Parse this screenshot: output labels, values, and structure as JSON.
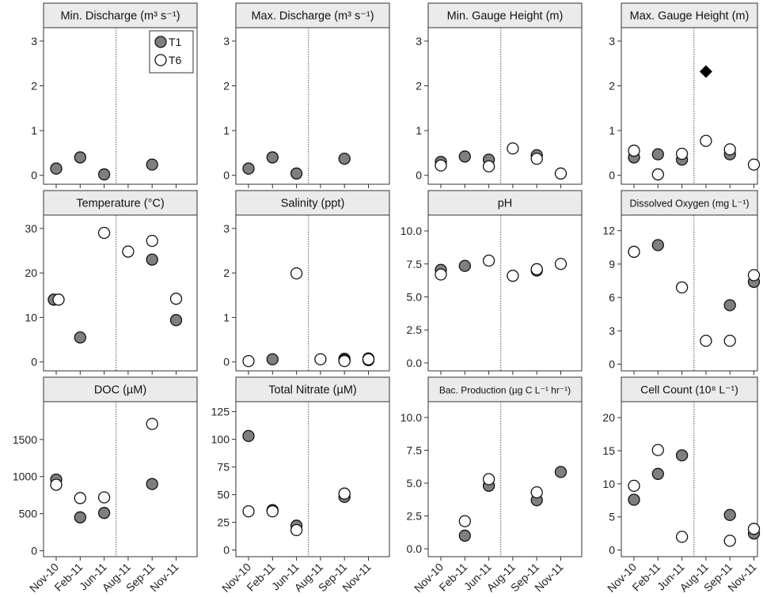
{
  "colors": {
    "t1_fill": "#7f7f7f",
    "t6_fill": "#ffffff",
    "marker_stroke": "#111111",
    "header_fill": "#ebebeb",
    "special_fill": "#000000"
  },
  "legend": {
    "t1": "T1",
    "t6": "T6"
  },
  "chart_data": [
    {
      "type": "scatter",
      "title": "Min. Discharge (m³ s⁻¹)",
      "yticks": [
        "0",
        "1",
        "2",
        "3"
      ],
      "ylim": [
        -0.2,
        3.3
      ],
      "categories": [
        "Nov-10",
        "Feb-11",
        "Jun-11",
        "Aug-11",
        "Sep-11",
        "Nov-11"
      ],
      "series": [
        {
          "name": "T1",
          "x": [
            0,
            1,
            2,
            4
          ],
          "values": [
            0.15,
            0.4,
            0.02,
            0.24
          ]
        },
        {
          "name": "T6",
          "x": [],
          "values": []
        }
      ]
    },
    {
      "type": "scatter",
      "title": "Max. Discharge (m³ s⁻¹)",
      "yticks": [
        "0",
        "1",
        "2",
        "3"
      ],
      "ylim": [
        -0.2,
        3.3
      ],
      "categories": [
        "Nov-10",
        "Feb-11",
        "Jun-11",
        "Aug-11",
        "Sep-11",
        "Nov-11"
      ],
      "series": [
        {
          "name": "T1",
          "x": [
            0,
            1,
            2,
            4
          ],
          "values": [
            0.15,
            0.4,
            0.04,
            0.37
          ]
        },
        {
          "name": "T6",
          "x": [],
          "values": []
        }
      ]
    },
    {
      "type": "scatter",
      "title": "Min. Gauge Height (m)",
      "yticks": [
        "0",
        "1",
        "2",
        "3"
      ],
      "ylim": [
        -0.2,
        3.3
      ],
      "categories": [
        "Nov-10",
        "Feb-11",
        "Jun-11",
        "Aug-11",
        "Sep-11",
        "Nov-11"
      ],
      "series": [
        {
          "name": "T1",
          "x": [
            0,
            1,
            2,
            4
          ],
          "values": [
            0.3,
            0.42,
            0.35,
            0.45
          ]
        },
        {
          "name": "T6",
          "x": [
            0,
            2,
            3,
            4,
            5
          ],
          "values": [
            0.22,
            0.2,
            0.6,
            0.37,
            0.04
          ]
        }
      ]
    },
    {
      "type": "scatter",
      "title": "Max. Gauge Height (m)",
      "yticks": [
        "0",
        "1",
        "2",
        "3"
      ],
      "ylim": [
        -0.2,
        3.3
      ],
      "categories": [
        "Nov-10",
        "Feb-11",
        "Jun-11",
        "Aug-11",
        "Sep-11",
        "Nov-11"
      ],
      "series": [
        {
          "name": "T1",
          "x": [
            0,
            1,
            2,
            4
          ],
          "values": [
            0.4,
            0.47,
            0.35,
            0.47
          ]
        },
        {
          "name": "T6",
          "x": [
            0,
            1,
            2,
            3,
            4,
            5
          ],
          "values": [
            0.55,
            0.02,
            0.48,
            0.77,
            0.58,
            0.24
          ]
        }
      ],
      "special": [
        {
          "x": 3,
          "value": 2.32
        }
      ]
    },
    {
      "type": "scatter",
      "title": "Temperature (°C)",
      "yticks": [
        "0",
        "10",
        "20",
        "30"
      ],
      "ylim": [
        -2,
        33
      ],
      "categories": [
        "Nov-10",
        "Feb-11",
        "Jun-11",
        "Aug-11",
        "Sep-11",
        "Nov-11"
      ],
      "series": [
        {
          "name": "T1",
          "x": [
            -0.1,
            1,
            4,
            5
          ],
          "values": [
            14,
            5.5,
            23,
            9.4
          ]
        },
        {
          "name": "T6",
          "x": [
            0.1,
            2,
            3,
            4,
            5
          ],
          "values": [
            14,
            29,
            24.8,
            27.2,
            14.2
          ]
        }
      ]
    },
    {
      "type": "scatter",
      "title": "Salinity (ppt)",
      "yticks": [
        "0",
        "1",
        "2",
        "3"
      ],
      "ylim": [
        -0.2,
        3.3
      ],
      "categories": [
        "Nov-10",
        "Feb-11",
        "Jun-11",
        "Aug-11",
        "Sep-11",
        "Nov-11"
      ],
      "series": [
        {
          "name": "T1",
          "x": [
            1,
            4,
            4,
            5,
            5
          ],
          "values": [
            0.06,
            0.07,
            0.04,
            0.08,
            0.04
          ]
        },
        {
          "name": "T6",
          "x": [
            0,
            2,
            3,
            4,
            5
          ],
          "values": [
            0.02,
            1.99,
            0.06,
            0.02,
            0.06
          ]
        }
      ]
    },
    {
      "type": "scatter",
      "title": "pH",
      "yticks": [
        "0.0",
        "2.5",
        "5.0",
        "7.5",
        "10.0"
      ],
      "ylim": [
        -0.6,
        11.2
      ],
      "categories": [
        "Nov-10",
        "Feb-11",
        "Jun-11",
        "Aug-11",
        "Sep-11",
        "Nov-11"
      ],
      "series": [
        {
          "name": "T1",
          "x": [
            0,
            1,
            4
          ],
          "values": [
            7.05,
            7.35,
            7.0
          ]
        },
        {
          "name": "T6",
          "x": [
            0,
            2,
            3,
            4,
            5
          ],
          "values": [
            6.7,
            7.75,
            6.6,
            7.1,
            7.5
          ]
        }
      ]
    },
    {
      "type": "scatter",
      "title": "Dissolved Oxygen (mg L⁻¹)",
      "yticks": [
        "0",
        "3",
        "6",
        "9",
        "12"
      ],
      "ylim": [
        -0.6,
        13.4
      ],
      "categories": [
        "Nov-10",
        "Feb-11",
        "Jun-11",
        "Aug-11",
        "Sep-11",
        "Nov-11"
      ],
      "series": [
        {
          "name": "T1",
          "x": [
            1,
            4,
            5
          ],
          "values": [
            10.7,
            5.3,
            7.4
          ]
        },
        {
          "name": "T6",
          "x": [
            0,
            2,
            3,
            4,
            5
          ],
          "values": [
            10.1,
            6.9,
            2.1,
            2.1,
            8.0
          ]
        }
      ]
    },
    {
      "type": "scatter",
      "title": "DOC (µM)",
      "yticks": [
        "0",
        "500",
        "1000",
        "1500"
      ],
      "ylim": [
        -80,
        2010
      ],
      "categories": [
        "Nov-10",
        "Feb-11",
        "Jun-11",
        "Aug-11",
        "Sep-11",
        "Nov-11"
      ],
      "series": [
        {
          "name": "T1",
          "x": [
            0,
            1,
            2,
            4
          ],
          "values": [
            960,
            450,
            510,
            900
          ]
        },
        {
          "name": "T6",
          "x": [
            0,
            1,
            2,
            4
          ],
          "values": [
            890,
            710,
            720,
            1710
          ]
        }
      ]
    },
    {
      "type": "scatter",
      "title": "Total Nitrate (µM)",
      "yticks": [
        "0",
        "25",
        "50",
        "75",
        "100",
        "125"
      ],
      "ylim": [
        -6,
        134
      ],
      "categories": [
        "Nov-10",
        "Feb-11",
        "Jun-11",
        "Aug-11",
        "Sep-11",
        "Nov-11"
      ],
      "series": [
        {
          "name": "T1",
          "x": [
            0,
            1,
            2,
            4
          ],
          "values": [
            103,
            36,
            22,
            48
          ]
        },
        {
          "name": "T6",
          "x": [
            0,
            1,
            2,
            4
          ],
          "values": [
            35,
            35,
            18,
            51
          ]
        }
      ]
    },
    {
      "type": "scatter",
      "title": "Bac. Production (µg C L⁻¹ hr⁻¹)",
      "yticks": [
        "0.0",
        "2.5",
        "5.0",
        "7.5",
        "10.0"
      ],
      "ylim": [
        -0.6,
        11.2
      ],
      "categories": [
        "Nov-10",
        "Feb-11",
        "Jun-11",
        "Aug-11",
        "Sep-11",
        "Nov-11"
      ],
      "series": [
        {
          "name": "T1",
          "x": [
            1,
            2,
            4,
            5
          ],
          "values": [
            1.0,
            4.8,
            3.7,
            5.85
          ]
        },
        {
          "name": "T6",
          "x": [
            1,
            2,
            4
          ],
          "values": [
            2.1,
            5.3,
            4.3
          ]
        }
      ]
    },
    {
      "type": "scatter",
      "title": "Cell Count (10⁸ L⁻¹)",
      "yticks": [
        "0",
        "5",
        "10",
        "15",
        "20"
      ],
      "ylim": [
        -1,
        22.4
      ],
      "categories": [
        "Nov-10",
        "Feb-11",
        "Jun-11",
        "Aug-11",
        "Sep-11",
        "Nov-11"
      ],
      "series": [
        {
          "name": "T1",
          "x": [
            0,
            1,
            2,
            4,
            5
          ],
          "values": [
            7.6,
            11.5,
            14.3,
            5.3,
            2.5
          ]
        },
        {
          "name": "T6",
          "x": [
            0,
            1,
            2,
            4,
            5
          ],
          "values": [
            9.7,
            15.1,
            2.0,
            1.4,
            3.2
          ]
        }
      ]
    }
  ]
}
